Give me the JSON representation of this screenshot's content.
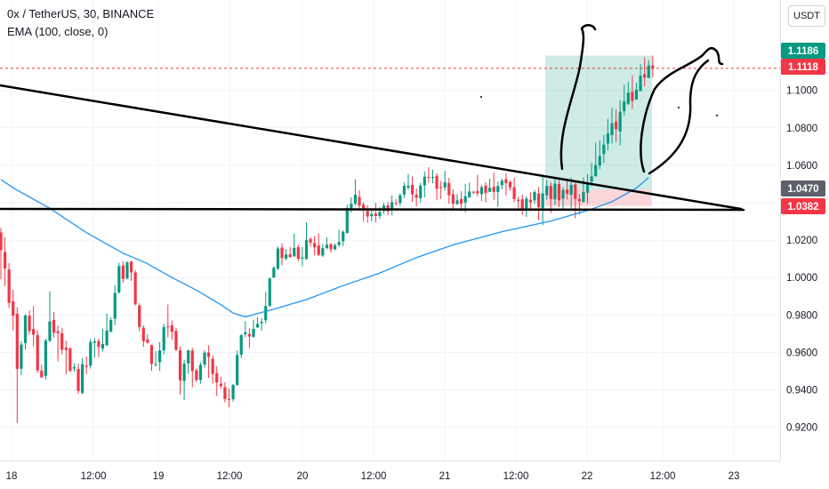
{
  "header": {
    "title": "0x / TetherUS, 30, BINANCE",
    "indicator": "EMA (100, close, 0)"
  },
  "price_axis": {
    "currency": "USDT"
  },
  "chart_data": {
    "type": "candlestick",
    "symbol": "0x / TetherUS",
    "interval": "30",
    "exchange": "BINANCE",
    "ylim": [
      0.912,
      1.1325
    ],
    "y_ticks": [
      0.92,
      0.94,
      0.96,
      0.98,
      1.0,
      1.02,
      1.04,
      1.06,
      1.08,
      1.1
    ],
    "y_tick_labels": [
      "0.9200",
      "0.9400",
      "0.9600",
      "0.9800",
      "1.0000",
      "1.0200",
      "1.0400",
      "1.0600",
      "1.0800",
      "1.1000"
    ],
    "x_tick_labels": [
      "18",
      "12:00",
      "19",
      "12:00",
      "20",
      "12:00",
      "21",
      "12:00",
      "22",
      "12:00",
      "23"
    ],
    "price_labels": [
      {
        "label": "1.1186",
        "value": 1.1186,
        "color": "#089981"
      },
      {
        "label": "1.1118",
        "value": 1.1118,
        "color": "#f23645"
      },
      {
        "label": "1.0470",
        "value": 1.047,
        "color": "#5d606b"
      },
      {
        "label": "1.0382",
        "value": 1.0382,
        "color": "#f23645"
      }
    ],
    "position_box": {
      "entry": 1.047,
      "stop": 1.0382,
      "target": 1.1186
    },
    "ema_points": [
      [
        0,
        1.0523
      ],
      [
        3.5,
        1.0473
      ],
      [
        12,
        1.037
      ],
      [
        21,
        1.024
      ],
      [
        30,
        1.013
      ],
      [
        35.5,
        1.008
      ],
      [
        42,
        1.0
      ],
      [
        48,
        0.9933
      ],
      [
        54,
        0.9855
      ],
      [
        57,
        0.981
      ],
      [
        60,
        0.979
      ],
      [
        66,
        0.9825
      ],
      [
        75,
        0.9882
      ],
      [
        84,
        0.9957
      ],
      [
        93,
        1.0024
      ],
      [
        102,
        1.0107
      ],
      [
        111,
        1.0175
      ],
      [
        123,
        1.0245
      ],
      [
        135,
        1.0302
      ],
      [
        144,
        1.0358
      ],
      [
        150,
        1.0405
      ],
      [
        156,
        1.0478
      ],
      [
        159,
        1.0534
      ]
    ],
    "candles": [
      [
        1.0241,
        1.0146,
        1.0264,
        0.9991
      ],
      [
        1.0137,
        1.0049,
        1.0214,
        0.9955
      ],
      [
        1.0043,
        0.9864,
        1.0077,
        0.9838
      ],
      [
        0.9874,
        0.9797,
        0.9935,
        0.9718
      ],
      [
        0.9807,
        0.9512,
        0.9841,
        0.9224
      ],
      [
        0.9513,
        0.9642,
        0.9658,
        0.9479
      ],
      [
        0.965,
        0.9798,
        0.9803,
        0.9615
      ],
      [
        0.9797,
        0.9715,
        0.9824,
        0.9694
      ],
      [
        0.9725,
        0.9695,
        0.9847,
        0.9632
      ],
      [
        0.9693,
        0.9504,
        0.9719,
        0.9491
      ],
      [
        0.9503,
        0.9466,
        0.9535,
        0.947
      ],
      [
        0.9475,
        0.9663,
        0.9673,
        0.9455
      ],
      [
        0.9663,
        0.9766,
        0.9927,
        0.9654
      ],
      [
        0.9774,
        0.9706,
        0.9816,
        0.9679
      ],
      [
        0.9713,
        0.9703,
        0.9744,
        0.9552
      ],
      [
        0.9703,
        0.9614,
        0.973,
        0.959
      ],
      [
        0.9626,
        0.9613,
        0.9663,
        0.9482
      ],
      [
        0.9622,
        0.9502,
        0.9628,
        0.9495
      ],
      [
        0.9514,
        0.9521,
        0.9542,
        0.9497
      ],
      [
        0.9512,
        0.9394,
        0.9541,
        0.9378
      ],
      [
        0.9384,
        0.9538,
        0.9568,
        0.9376
      ],
      [
        0.9529,
        0.9523,
        0.9578,
        0.9484
      ],
      [
        0.9529,
        0.9656,
        0.9672,
        0.9514
      ],
      [
        0.9652,
        0.9659,
        0.9676,
        0.9572
      ],
      [
        0.9661,
        0.9629,
        0.9674,
        0.9576
      ],
      [
        0.9621,
        0.9645,
        0.9726,
        0.9605
      ],
      [
        0.9639,
        0.9717,
        0.9808,
        0.9632
      ],
      [
        0.971,
        0.9773,
        0.9788,
        0.9716
      ],
      [
        0.978,
        0.9918,
        0.9959,
        0.9746
      ],
      [
        0.9921,
        1.0061,
        1.0079,
        0.9913
      ],
      [
        1.0064,
        0.9993,
        1.0087,
        0.9974
      ],
      [
        0.9996,
        1.0081,
        1.0088,
        0.9989
      ],
      [
        1.0085,
        1.0027,
        1.009,
        0.9982
      ],
      [
        1.0027,
        0.9857,
        1.0039,
        0.9851
      ],
      [
        0.9851,
        0.9736,
        0.9863,
        0.9712
      ],
      [
        0.9732,
        0.966,
        0.9745,
        0.9629
      ],
      [
        0.9669,
        0.9652,
        0.9696,
        0.9647
      ],
      [
        0.9639,
        0.9539,
        0.9642,
        0.9501
      ],
      [
        0.9534,
        0.9538,
        0.9608,
        0.9524
      ],
      [
        0.9548,
        0.9611,
        0.9656,
        0.9501
      ],
      [
        0.9611,
        0.9736,
        0.9753,
        0.9589
      ],
      [
        0.9739,
        0.9738,
        0.9856,
        0.9681
      ],
      [
        0.9745,
        0.971,
        0.9771,
        0.9668
      ],
      [
        0.9715,
        0.9614,
        0.9732,
        0.9608
      ],
      [
        0.9612,
        0.9451,
        0.9632,
        0.9374
      ],
      [
        0.9448,
        0.954,
        0.9561,
        0.9345
      ],
      [
        0.9541,
        0.9612,
        0.9614,
        0.9485
      ],
      [
        0.961,
        0.95,
        0.9625,
        0.9414
      ],
      [
        0.9505,
        0.9452,
        0.9515,
        0.9442
      ],
      [
        0.9453,
        0.9533,
        0.9547,
        0.9434
      ],
      [
        0.9535,
        0.9599,
        0.9611,
        0.9518
      ],
      [
        0.9599,
        0.9576,
        0.9638,
        0.9464
      ],
      [
        0.9566,
        0.9485,
        0.9585,
        0.9433
      ],
      [
        0.9489,
        0.9439,
        0.9526,
        0.9367
      ],
      [
        0.9433,
        0.942,
        0.947,
        0.9404
      ],
      [
        0.9414,
        0.9351,
        0.944,
        0.9333
      ],
      [
        0.9351,
        0.9347,
        0.9407,
        0.9307
      ],
      [
        0.935,
        0.9427,
        0.943,
        0.9338
      ],
      [
        0.9425,
        0.9586,
        0.9611,
        0.9424
      ],
      [
        0.9588,
        0.9692,
        0.9698,
        0.9569
      ],
      [
        0.9697,
        0.9707,
        0.9766,
        0.9682
      ],
      [
        0.9699,
        0.9685,
        0.973,
        0.9624
      ],
      [
        0.9683,
        0.9726,
        0.9775,
        0.9678
      ],
      [
        0.9733,
        0.9752,
        0.9789,
        0.974
      ],
      [
        0.9756,
        0.9763,
        0.9783,
        0.9717
      ],
      [
        0.9772,
        0.9848,
        0.9924,
        0.9756
      ],
      [
        0.9849,
        0.9995,
        1.0002,
        0.9844
      ],
      [
        1.0,
        1.0052,
        1.0061,
        0.9999
      ],
      [
        1.0048,
        1.0155,
        1.0166,
        1.0041
      ],
      [
        1.016,
        1.0104,
        1.0183,
        1.0066
      ],
      [
        1.0102,
        1.0123,
        1.0152,
        1.0092
      ],
      [
        1.0125,
        1.011,
        1.0162,
        1.0105
      ],
      [
        1.0113,
        1.0158,
        1.0236,
        1.0112
      ],
      [
        1.0163,
        1.0101,
        1.0177,
        1.0088
      ],
      [
        1.0101,
        1.0106,
        1.0163,
        1.006
      ],
      [
        1.0099,
        1.02,
        1.0295,
        1.0096
      ],
      [
        1.0206,
        1.0187,
        1.0215,
        1.0165
      ],
      [
        1.0185,
        1.0161,
        1.0223,
        1.0119
      ],
      [
        1.0172,
        1.0122,
        1.0237,
        1.0114
      ],
      [
        1.0118,
        1.0157,
        1.0178,
        1.011
      ],
      [
        1.0158,
        1.0175,
        1.0214,
        1.0151
      ],
      [
        1.0179,
        1.0151,
        1.0184,
        1.0134
      ],
      [
        1.0151,
        1.0172,
        1.0182,
        1.0145
      ],
      [
        1.0174,
        1.019,
        1.0256,
        1.0165
      ],
      [
        1.0194,
        1.0245,
        1.0252,
        1.0168
      ],
      [
        1.0239,
        1.0372,
        1.039,
        1.0233
      ],
      [
        1.0366,
        1.0395,
        1.0429,
        1.0349
      ],
      [
        1.0395,
        1.0443,
        1.0526,
        1.0385
      ],
      [
        1.0431,
        1.0385,
        1.0467,
        1.0359
      ],
      [
        1.039,
        1.0362,
        1.0403,
        1.0299
      ],
      [
        1.0356,
        1.0327,
        1.0387,
        1.0293
      ],
      [
        1.0328,
        1.0339,
        1.037,
        1.03
      ],
      [
        1.0342,
        1.0329,
        1.0399,
        1.0295
      ],
      [
        1.0329,
        1.0351,
        1.0375,
        1.0315
      ],
      [
        1.0356,
        1.0385,
        1.0402,
        1.0341
      ],
      [
        1.0386,
        1.0354,
        1.0406,
        1.0333
      ],
      [
        1.036,
        1.0402,
        1.0439,
        1.0332
      ],
      [
        1.0398,
        1.0397,
        1.042,
        1.0385
      ],
      [
        1.0398,
        1.0439,
        1.0451,
        1.0382
      ],
      [
        1.0444,
        1.0491,
        1.0508,
        1.0424
      ],
      [
        1.0481,
        1.049,
        1.0553,
        1.0468
      ],
      [
        1.0495,
        1.0445,
        1.054,
        1.0405
      ],
      [
        1.0442,
        1.0427,
        1.0476,
        1.038
      ],
      [
        1.0424,
        1.0492,
        1.0507,
        1.0401
      ],
      [
        1.0493,
        1.0539,
        1.0567,
        1.0429
      ],
      [
        1.0538,
        1.0534,
        1.059,
        1.0506
      ],
      [
        1.0533,
        1.0538,
        1.0577,
        1.0504
      ],
      [
        1.0544,
        1.0474,
        1.0558,
        1.0413
      ],
      [
        1.0483,
        1.0481,
        1.0516,
        1.042
      ],
      [
        1.0482,
        1.0509,
        1.0571,
        1.0464
      ],
      [
        1.0505,
        1.044,
        1.0532,
        1.0394
      ],
      [
        1.0445,
        1.0395,
        1.0472,
        1.0362
      ],
      [
        1.0393,
        1.0413,
        1.0446,
        1.0388
      ],
      [
        1.0419,
        1.0395,
        1.0461,
        1.0356
      ],
      [
        1.0401,
        1.0435,
        1.0501,
        1.0348
      ],
      [
        1.0428,
        1.046,
        1.0508,
        1.0443
      ],
      [
        1.0458,
        1.0456,
        1.0464,
        1.0445
      ],
      [
        1.0462,
        1.045,
        1.0549,
        1.0435
      ],
      [
        1.0446,
        1.0483,
        1.0496,
        1.0409
      ],
      [
        1.0492,
        1.0452,
        1.0509,
        1.0402
      ],
      [
        1.0458,
        1.048,
        1.0528,
        1.0466
      ],
      [
        1.0485,
        1.0458,
        1.0561,
        1.0413
      ],
      [
        1.0457,
        1.0489,
        1.0513,
        1.0378
      ],
      [
        1.0494,
        1.0518,
        1.053,
        1.0472
      ],
      [
        1.0526,
        1.0504,
        1.0557,
        1.0439
      ],
      [
        1.0511,
        1.0482,
        1.052,
        1.0464
      ],
      [
        1.0483,
        1.0419,
        1.0533,
        1.0403
      ],
      [
        1.0416,
        1.0409,
        1.0432,
        1.0363
      ],
      [
        1.0418,
        1.0368,
        1.0444,
        1.0334
      ],
      [
        1.037,
        1.0422,
        1.0435,
        1.0324
      ],
      [
        1.0416,
        1.0402,
        1.0455,
        1.0367
      ],
      [
        1.0412,
        1.0457,
        1.0467,
        1.0392
      ],
      [
        1.0449,
        1.0377,
        1.0484,
        1.0306
      ],
      [
        1.037,
        1.045,
        1.055,
        1.028
      ],
      [
        1.044,
        1.049,
        1.052,
        1.0415
      ],
      [
        1.049,
        1.042,
        1.051,
        1.0344
      ],
      [
        1.0418,
        1.0501,
        1.0526,
        1.0387
      ],
      [
        1.05,
        1.0413,
        1.0534,
        1.0376
      ],
      [
        1.0421,
        1.0468,
        1.0482,
        1.0356
      ],
      [
        1.0471,
        1.0448,
        1.0529,
        1.0417
      ],
      [
        1.0442,
        1.0495,
        1.0535,
        1.0357
      ],
      [
        1.0498,
        1.0421,
        1.051,
        1.0317
      ],
      [
        1.042,
        1.0408,
        1.0446,
        1.0336
      ],
      [
        1.0405,
        1.0457,
        1.0535,
        1.04
      ],
      [
        1.0453,
        1.0502,
        1.0553,
        1.0397
      ],
      [
        1.0512,
        1.0541,
        1.0613,
        1.0488
      ],
      [
        1.0541,
        1.0601,
        1.0721,
        1.054
      ],
      [
        1.0599,
        1.065,
        1.0733,
        1.0579
      ],
      [
        1.066,
        1.071,
        1.0762,
        1.0612
      ],
      [
        1.0716,
        1.0769,
        1.0848,
        1.068
      ],
      [
        1.0761,
        1.0825,
        1.0908,
        1.0716
      ],
      [
        1.0834,
        1.0793,
        1.0898,
        1.0724
      ],
      [
        1.0781,
        1.0886,
        1.0948,
        1.0707
      ],
      [
        1.0889,
        1.094,
        1.1031,
        1.0866
      ],
      [
        1.0929,
        1.0988,
        1.1046,
        1.0922
      ],
      [
        1.0993,
        1.0943,
        1.1082,
        1.0902
      ],
      [
        1.0951,
        1.1004,
        1.1041,
        1.096
      ],
      [
        1.0996,
        1.1078,
        1.1141,
        1.1021
      ],
      [
        1.1087,
        1.1069,
        1.1177,
        1.1022
      ],
      [
        1.1066,
        1.1133,
        1.1162,
        1.1077
      ],
      [
        1.1133,
        1.1118,
        1.1186,
        1.1069
      ]
    ]
  }
}
